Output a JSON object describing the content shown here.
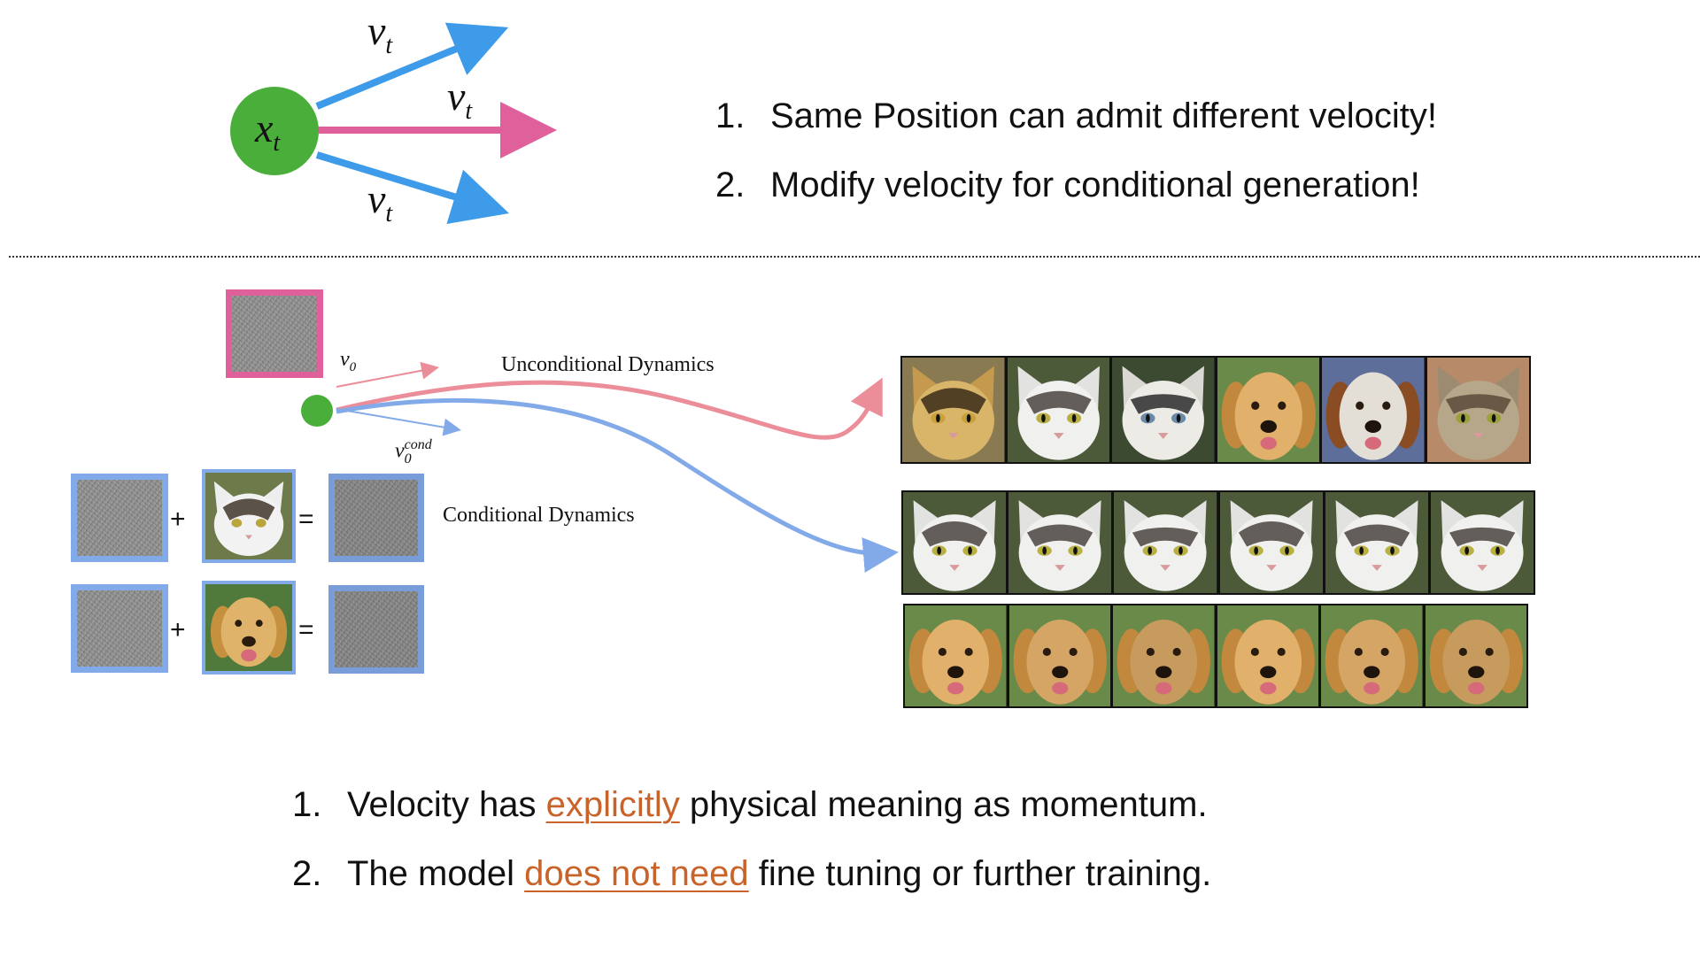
{
  "top_diagram": {
    "node_label": "x",
    "node_sub": "t",
    "arrow_label": "v",
    "arrow_sub": "t"
  },
  "top_list": [
    "Same Position can admit different velocity!",
    "Modify velocity for conditional generation!"
  ],
  "mid_diagram": {
    "v0_label": "v",
    "v0_sub": "0",
    "vcond_sub": "0",
    "vcond_sup": "cond",
    "unconditional_label": "Unconditional Dynamics",
    "conditional_label": "Conditional Dynamics",
    "plus": "+",
    "equals": "="
  },
  "bottom_list": [
    {
      "pre": "Velocity has ",
      "highlight": "explicitly",
      "post": " physical meaning as momentum."
    },
    {
      "pre": "The model ",
      "highlight": "does not need",
      "post": " fine tuning or further training."
    }
  ],
  "colors": {
    "node_green": "#4aae3a",
    "arrow_blue": "#3d9be9",
    "arrow_pink": "#e0609c",
    "uncond_curve": "#ec8e9a",
    "cond_curve": "#82a9e8",
    "highlight": "#c8642a"
  },
  "photo_rows": {
    "unconditional": [
      "cheetah-face",
      "cat-face",
      "white-tiger-face",
      "dog-face",
      "spaniel-face",
      "tabby-cat-face"
    ],
    "cat_conditioned": [
      "cat-face",
      "cat-face",
      "cat-face",
      "cat-face",
      "cat-face",
      "cat-face"
    ],
    "dog_conditioned": [
      "dog-face",
      "dog-face",
      "dog-face",
      "dog-face",
      "dog-face",
      "dog-face"
    ]
  }
}
